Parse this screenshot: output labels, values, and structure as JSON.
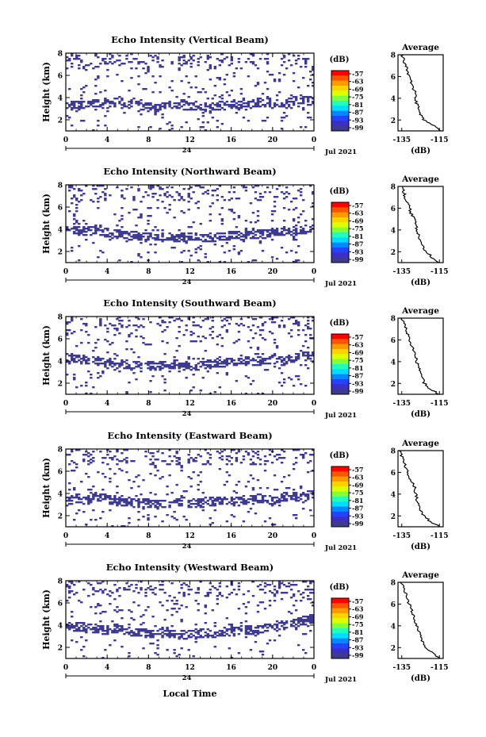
{
  "page": {
    "xlabel": "Local Time",
    "date_label": "Jul 2021",
    "date_day": "24"
  },
  "colorbar": {
    "unit": "(dB)",
    "ticks": [
      "-57",
      "-63",
      "-69",
      "-75",
      "-81",
      "-87",
      "-93",
      "-99"
    ],
    "colors": [
      "#ff0000",
      "#ff5500",
      "#ff9900",
      "#ffd200",
      "#ddff00",
      "#88ff33",
      "#22ffbb",
      "#00ddff",
      "#0088ff",
      "#2244ff",
      "#3b2fc8",
      "#3e3a8e"
    ]
  },
  "chart_data": [
    {
      "type": "heatmap",
      "title": "Echo Intensity (Vertical Beam)",
      "ylabel": "Height (km)",
      "x_ticks": [
        "0",
        "4",
        "8",
        "12",
        "16",
        "20",
        "0"
      ],
      "y_ticks": [
        "2",
        "4",
        "6",
        "8"
      ],
      "xlim": [
        0,
        24
      ],
      "ylim": [
        1,
        8
      ],
      "echo_top_km": [
        3.4,
        3.5,
        3.6,
        3.7,
        3.6,
        3.8,
        3.5,
        3.9,
        3.4,
        3.2,
        3.4,
        3.6,
        3.5,
        3.4,
        3.3,
        3.4,
        3.5,
        3.6,
        3.4,
        3.7,
        3.8,
        3.6,
        3.5,
        3.9,
        4.1,
        3.8
      ],
      "average": {
        "title": "Average",
        "xlabel": "(dB)",
        "x_ticks": [
          "-135",
          "-115"
        ],
        "xlim": [
          -137,
          -113
        ],
        "y_ticks": [
          "2",
          "4",
          "6",
          "8"
        ],
        "height_km": [
          1.0,
          1.5,
          2.0,
          2.5,
          3.0,
          3.5,
          4.0,
          4.5,
          5.0,
          5.5,
          6.0,
          6.5,
          7.0,
          7.5,
          8.0
        ],
        "value_db": [
          -114,
          -118,
          -123,
          -125,
          -126,
          -127,
          -127.5,
          -128,
          -129,
          -130,
          -131,
          -132,
          -133,
          -134,
          -135
        ]
      }
    },
    {
      "type": "heatmap",
      "title": "Echo Intensity (Northward Beam)",
      "ylabel": "Height (km)",
      "x_ticks": [
        "0",
        "4",
        "8",
        "12",
        "16",
        "20",
        "0"
      ],
      "y_ticks": [
        "2",
        "4",
        "6",
        "8"
      ],
      "xlim": [
        0,
        24
      ],
      "ylim": [
        1,
        8
      ],
      "echo_top_km": [
        4.3,
        4.1,
        4.0,
        4.2,
        3.9,
        3.8,
        3.7,
        3.6,
        3.5,
        3.6,
        3.5,
        3.4,
        3.5,
        3.6,
        3.4,
        3.5,
        3.6,
        3.7,
        3.6,
        3.8,
        3.7,
        3.9,
        4.0,
        3.8,
        4.1,
        4.4
      ],
      "average": {
        "title": "Average",
        "xlabel": "(dB)",
        "x_ticks": [
          "-135",
          "-115"
        ],
        "xlim": [
          -137,
          -113
        ],
        "y_ticks": [
          "2",
          "4",
          "6",
          "8"
        ],
        "height_km": [
          1.0,
          1.5,
          2.0,
          2.5,
          3.0,
          3.5,
          4.0,
          4.5,
          5.0,
          5.5,
          6.0,
          6.5,
          7.0,
          7.5,
          8.0
        ],
        "value_db": [
          -115,
          -119,
          -122,
          -124,
          -125,
          -126,
          -127,
          -127.5,
          -128,
          -130,
          -131,
          -132,
          -133,
          -134,
          -135
        ]
      }
    },
    {
      "type": "heatmap",
      "title": "Echo Intensity (Southward Beam)",
      "ylabel": "Height (km)",
      "x_ticks": [
        "0",
        "4",
        "8",
        "12",
        "16",
        "20",
        "0"
      ],
      "y_ticks": [
        "2",
        "4",
        "6",
        "8"
      ],
      "xlim": [
        0,
        24
      ],
      "ylim": [
        1,
        8
      ],
      "echo_top_km": [
        4.5,
        4.4,
        4.3,
        4.2,
        4.0,
        4.1,
        3.9,
        3.8,
        3.9,
        3.7,
        3.8,
        3.9,
        3.8,
        3.7,
        3.9,
        4.0,
        4.1,
        4.0,
        4.2,
        4.1,
        4.3,
        4.4,
        4.2,
        4.5,
        4.6,
        4.7
      ],
      "average": {
        "title": "Average",
        "xlabel": "(dB)",
        "x_ticks": [
          "-135",
          "-115"
        ],
        "xlim": [
          -137,
          -113
        ],
        "y_ticks": [
          "2",
          "4",
          "6",
          "8"
        ],
        "height_km": [
          1.0,
          1.5,
          2.0,
          2.5,
          3.0,
          3.5,
          4.0,
          4.5,
          5.0,
          5.5,
          6.0,
          6.5,
          7.0,
          7.5,
          8.0
        ],
        "value_db": [
          -115,
          -120,
          -123,
          -124,
          -125,
          -126,
          -127,
          -128,
          -129,
          -130,
          -131,
          -132,
          -133,
          -134,
          -135
        ]
      }
    },
    {
      "type": "heatmap",
      "title": "Echo Intensity (Eastward Beam)",
      "ylabel": "Height (km)",
      "x_ticks": [
        "0",
        "4",
        "8",
        "12",
        "16",
        "20",
        "0"
      ],
      "y_ticks": [
        "2",
        "4",
        "6",
        "8"
      ],
      "xlim": [
        0,
        24
      ],
      "ylim": [
        1,
        8
      ],
      "echo_top_km": [
        3.5,
        3.8,
        3.6,
        3.9,
        3.7,
        3.5,
        3.4,
        3.3,
        3.4,
        3.2,
        3.3,
        3.4,
        3.5,
        3.3,
        3.4,
        3.5,
        3.6,
        3.4,
        3.6,
        3.8,
        3.7,
        3.6,
        3.9,
        4.0,
        3.8,
        4.2
      ],
      "average": {
        "title": "Average",
        "xlabel": "(dB)",
        "x_ticks": [
          "-135",
          "-115"
        ],
        "xlim": [
          -137,
          -113
        ],
        "y_ticks": [
          "2",
          "4",
          "6",
          "8"
        ],
        "height_km": [
          1.0,
          1.5,
          2.0,
          2.5,
          3.0,
          3.5,
          4.0,
          4.5,
          5.0,
          5.5,
          6.0,
          6.5,
          7.0,
          7.5,
          8.0
        ],
        "value_db": [
          -115,
          -120,
          -123,
          -125,
          -126,
          -127,
          -127.5,
          -128,
          -129,
          -131,
          -132,
          -133,
          -134,
          -135,
          -136
        ]
      }
    },
    {
      "type": "heatmap",
      "title": "Echo Intensity (Westward Beam)",
      "ylabel": "Height (km)",
      "x_ticks": [
        "0",
        "4",
        "8",
        "12",
        "16",
        "20",
        "0"
      ],
      "y_ticks": [
        "2",
        "4",
        "6",
        "8"
      ],
      "xlim": [
        0,
        24
      ],
      "ylim": [
        1,
        8
      ],
      "echo_top_km": [
        4.0,
        4.1,
        4.0,
        3.9,
        3.8,
        3.9,
        3.7,
        3.6,
        3.5,
        3.4,
        3.5,
        3.4,
        3.3,
        3.4,
        3.5,
        3.4,
        3.6,
        3.7,
        3.8,
        3.7,
        3.9,
        4.0,
        4.2,
        4.4,
        4.6,
        4.8
      ],
      "average": {
        "title": "Average",
        "xlabel": "(dB)",
        "x_ticks": [
          "-135",
          "-115"
        ],
        "xlim": [
          -137,
          -113
        ],
        "y_ticks": [
          "2",
          "4",
          "6",
          "8"
        ],
        "height_km": [
          1.0,
          1.5,
          2.0,
          2.5,
          3.0,
          3.5,
          4.0,
          4.5,
          5.0,
          5.5,
          6.0,
          6.5,
          7.0,
          7.5,
          8.0
        ],
        "value_db": [
          -115,
          -119,
          -122,
          -124,
          -125,
          -126,
          -127,
          -128,
          -129,
          -130,
          -131,
          -132,
          -133,
          -134,
          -135
        ]
      }
    }
  ]
}
